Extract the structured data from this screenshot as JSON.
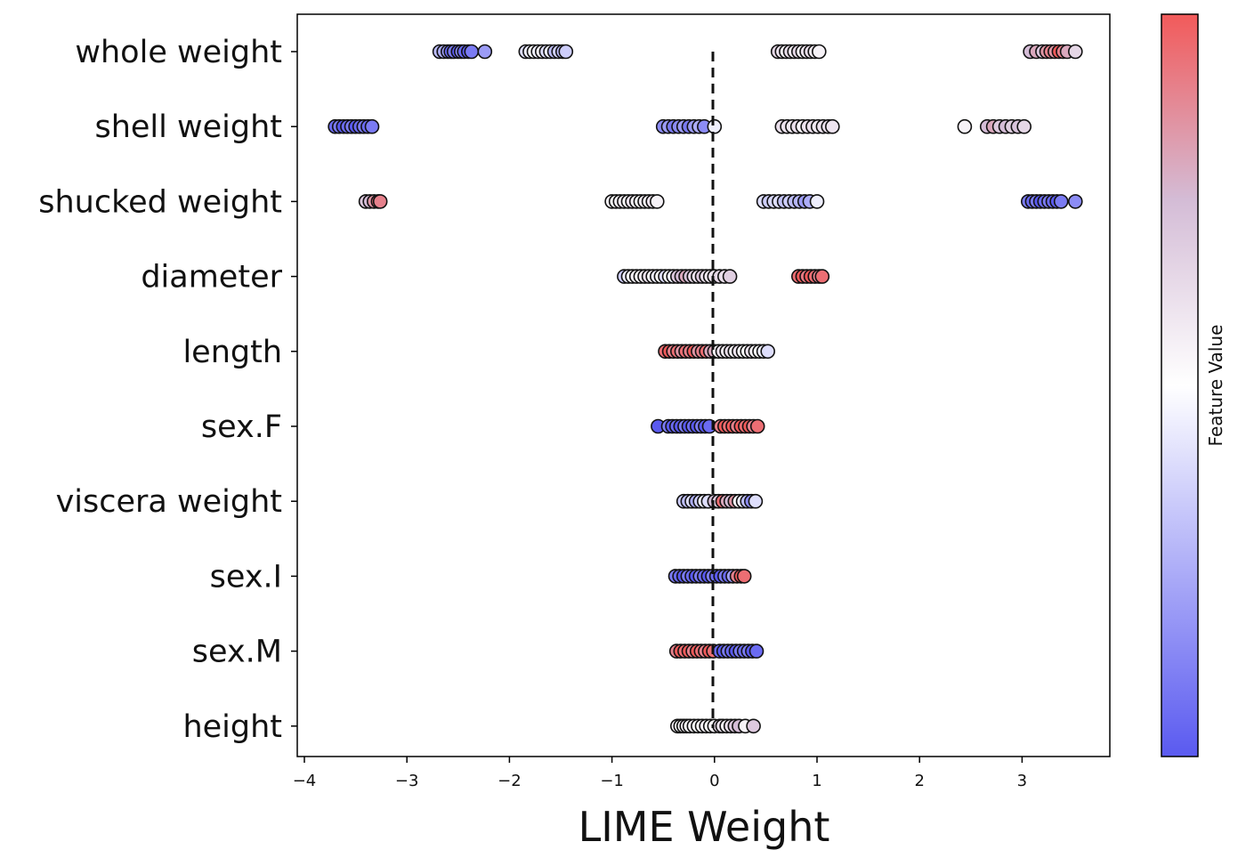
{
  "chart_data": {
    "type": "scatter",
    "xlabel": "LIME Weight",
    "ylabel": "",
    "xlim": [
      -4.05,
      3.87
    ],
    "x_ticks": [
      -4,
      -3,
      -2,
      -1,
      0,
      1,
      2,
      3
    ],
    "x_tick_labels": [
      "−4",
      "−3",
      "−2",
      "−1",
      "0",
      "1",
      "2",
      "3"
    ],
    "grid": false,
    "reference_line": {
      "x": 0,
      "style": "dashed",
      "color": "#111111"
    },
    "colorbar": {
      "label": "Feature Value",
      "colors": {
        "low": "#5a5af0",
        "mid": "#ffffff",
        "high": "#f25a5a"
      }
    },
    "categories": [
      "whole weight",
      "shell weight",
      "shucked weight",
      "diameter",
      "length",
      "sex.F",
      "viscera weight",
      "sex.I",
      "sex.M",
      "height"
    ],
    "series": [
      {
        "category": "whole weight",
        "points": [
          [
            -2.68,
            0.3
          ],
          [
            -2.64,
            0.25
          ],
          [
            -2.6,
            0.2
          ],
          [
            -2.57,
            0.05
          ],
          [
            -2.54,
            0.1
          ],
          [
            -2.5,
            0.0
          ],
          [
            -2.47,
            0.15
          ],
          [
            -2.44,
            0.05
          ],
          [
            -2.4,
            0.0
          ],
          [
            -2.37,
            0.1
          ],
          [
            -2.24,
            0.2
          ],
          [
            -1.84,
            0.4
          ],
          [
            -1.8,
            0.45
          ],
          [
            -1.76,
            0.5
          ],
          [
            -1.72,
            0.45
          ],
          [
            -1.68,
            0.55
          ],
          [
            -1.64,
            0.4
          ],
          [
            -1.6,
            0.45
          ],
          [
            -1.56,
            0.3
          ],
          [
            -1.52,
            0.35
          ],
          [
            -1.48,
            0.3
          ],
          [
            -1.45,
            0.35
          ],
          [
            0.62,
            0.65
          ],
          [
            0.66,
            0.6
          ],
          [
            0.7,
            0.55
          ],
          [
            0.74,
            0.62
          ],
          [
            0.78,
            0.58
          ],
          [
            0.82,
            0.65
          ],
          [
            0.86,
            0.55
          ],
          [
            0.9,
            0.6
          ],
          [
            0.94,
            0.62
          ],
          [
            0.98,
            0.58
          ],
          [
            1.02,
            0.55
          ],
          [
            3.08,
            0.75
          ],
          [
            3.14,
            0.8
          ],
          [
            3.2,
            0.7
          ],
          [
            3.24,
            0.85
          ],
          [
            3.28,
            0.9
          ],
          [
            3.32,
            0.85
          ],
          [
            3.36,
            1.0
          ],
          [
            3.4,
            0.9
          ],
          [
            3.44,
            0.8
          ],
          [
            3.52,
            0.65
          ]
        ]
      },
      {
        "category": "shell weight",
        "points": [
          [
            -3.7,
            0.05
          ],
          [
            -3.66,
            0.1
          ],
          [
            -3.62,
            0.0
          ],
          [
            -3.58,
            0.05
          ],
          [
            -3.54,
            0.1
          ],
          [
            -3.5,
            0.0
          ],
          [
            -3.46,
            0.05
          ],
          [
            -3.42,
            0.1
          ],
          [
            -3.38,
            0.05
          ],
          [
            -3.34,
            0.1
          ],
          [
            -0.5,
            0.15
          ],
          [
            -0.45,
            0.2
          ],
          [
            -0.4,
            0.1
          ],
          [
            -0.35,
            0.15
          ],
          [
            -0.3,
            0.2
          ],
          [
            -0.25,
            0.1
          ],
          [
            -0.2,
            0.2
          ],
          [
            -0.15,
            0.25
          ],
          [
            -0.1,
            0.15
          ],
          [
            0.0,
            0.45
          ],
          [
            0.66,
            0.62
          ],
          [
            0.71,
            0.6
          ],
          [
            0.76,
            0.58
          ],
          [
            0.81,
            0.62
          ],
          [
            0.86,
            0.55
          ],
          [
            0.91,
            0.6
          ],
          [
            0.96,
            0.62
          ],
          [
            1.01,
            0.58
          ],
          [
            1.06,
            0.6
          ],
          [
            1.11,
            0.62
          ],
          [
            1.15,
            0.6
          ],
          [
            2.44,
            0.55
          ],
          [
            2.66,
            0.75
          ],
          [
            2.72,
            0.8
          ],
          [
            2.78,
            0.7
          ],
          [
            2.84,
            0.75
          ],
          [
            2.9,
            0.68
          ],
          [
            2.96,
            0.72
          ],
          [
            3.02,
            0.65
          ]
        ]
      },
      {
        "category": "shucked weight",
        "points": [
          [
            -3.4,
            0.7
          ],
          [
            -3.36,
            0.75
          ],
          [
            -3.32,
            0.85
          ],
          [
            -3.28,
            0.95
          ],
          [
            -3.26,
            0.9
          ],
          [
            -1.0,
            0.55
          ],
          [
            -0.96,
            0.5
          ],
          [
            -0.92,
            0.55
          ],
          [
            -0.88,
            0.58
          ],
          [
            -0.84,
            0.52
          ],
          [
            -0.8,
            0.6
          ],
          [
            -0.76,
            0.55
          ],
          [
            -0.72,
            0.5
          ],
          [
            -0.68,
            0.58
          ],
          [
            -0.64,
            0.55
          ],
          [
            -0.6,
            0.6
          ],
          [
            -0.56,
            0.55
          ],
          [
            0.48,
            0.4
          ],
          [
            0.53,
            0.35
          ],
          [
            0.58,
            0.38
          ],
          [
            0.63,
            0.4
          ],
          [
            0.68,
            0.32
          ],
          [
            0.73,
            0.35
          ],
          [
            0.78,
            0.3
          ],
          [
            0.83,
            0.28
          ],
          [
            0.88,
            0.2
          ],
          [
            0.93,
            0.25
          ],
          [
            1.0,
            0.45
          ],
          [
            3.06,
            0.1
          ],
          [
            3.1,
            0.05
          ],
          [
            3.14,
            0.1
          ],
          [
            3.18,
            0.0
          ],
          [
            3.22,
            0.05
          ],
          [
            3.26,
            0.1
          ],
          [
            3.3,
            0.05
          ],
          [
            3.34,
            0.0
          ],
          [
            3.38,
            0.1
          ],
          [
            3.52,
            0.15
          ]
        ]
      },
      {
        "category": "diameter",
        "points": [
          [
            -0.88,
            0.35
          ],
          [
            -0.84,
            0.45
          ],
          [
            -0.8,
            0.5
          ],
          [
            -0.76,
            0.55
          ],
          [
            -0.72,
            0.52
          ],
          [
            -0.68,
            0.58
          ],
          [
            -0.64,
            0.6
          ],
          [
            -0.6,
            0.55
          ],
          [
            -0.56,
            0.45
          ],
          [
            -0.52,
            0.5
          ],
          [
            -0.48,
            0.4
          ],
          [
            -0.44,
            0.5
          ],
          [
            -0.4,
            0.45
          ],
          [
            -0.36,
            0.7
          ],
          [
            -0.32,
            0.75
          ],
          [
            -0.28,
            0.8
          ],
          [
            -0.24,
            0.72
          ],
          [
            -0.2,
            0.65
          ],
          [
            -0.16,
            0.6
          ],
          [
            -0.12,
            0.7
          ],
          [
            -0.08,
            0.62
          ],
          [
            -0.04,
            0.58
          ],
          [
            0.0,
            0.6
          ],
          [
            0.05,
            0.65
          ],
          [
            0.1,
            0.62
          ],
          [
            0.15,
            0.68
          ],
          [
            0.82,
            0.95
          ],
          [
            0.86,
            1.0
          ],
          [
            0.9,
            0.92
          ],
          [
            0.94,
            1.0
          ],
          [
            0.98,
            0.95
          ],
          [
            1.02,
            0.9
          ],
          [
            1.05,
            0.95
          ]
        ]
      },
      {
        "category": "length",
        "points": [
          [
            -0.48,
            0.95
          ],
          [
            -0.44,
            1.0
          ],
          [
            -0.4,
            0.9
          ],
          [
            -0.36,
            0.95
          ],
          [
            -0.32,
            0.85
          ],
          [
            -0.28,
            0.95
          ],
          [
            -0.24,
            0.9
          ],
          [
            -0.2,
            1.0
          ],
          [
            -0.16,
            0.85
          ],
          [
            -0.12,
            0.9
          ],
          [
            -0.08,
            0.95
          ],
          [
            -0.04,
            0.8
          ],
          [
            0.0,
            0.8
          ],
          [
            0.04,
            0.55
          ],
          [
            0.08,
            0.6
          ],
          [
            0.12,
            0.58
          ],
          [
            0.16,
            0.62
          ],
          [
            0.2,
            0.55
          ],
          [
            0.24,
            0.6
          ],
          [
            0.28,
            0.52
          ],
          [
            0.32,
            0.5
          ],
          [
            0.36,
            0.6
          ],
          [
            0.4,
            0.55
          ],
          [
            0.44,
            0.5
          ],
          [
            0.48,
            0.45
          ],
          [
            0.52,
            0.4
          ]
        ]
      },
      {
        "category": "sex.F",
        "points": [
          [
            -0.55,
            0.0
          ],
          [
            -0.45,
            0.1
          ],
          [
            -0.41,
            0.0
          ],
          [
            -0.37,
            0.05
          ],
          [
            -0.33,
            0.0
          ],
          [
            -0.29,
            0.1
          ],
          [
            -0.25,
            0.0
          ],
          [
            -0.21,
            0.05
          ],
          [
            -0.17,
            0.0
          ],
          [
            -0.13,
            0.1
          ],
          [
            -0.09,
            0.0
          ],
          [
            -0.05,
            0.05
          ],
          [
            0.06,
            0.9
          ],
          [
            0.1,
            1.0
          ],
          [
            0.14,
            0.95
          ],
          [
            0.18,
            1.0
          ],
          [
            0.22,
            0.9
          ],
          [
            0.26,
            1.0
          ],
          [
            0.3,
            0.95
          ],
          [
            0.34,
            1.0
          ],
          [
            0.38,
            0.9
          ],
          [
            0.42,
            0.95
          ]
        ]
      },
      {
        "category": "viscera weight",
        "points": [
          [
            -0.3,
            0.35
          ],
          [
            -0.26,
            0.3
          ],
          [
            -0.22,
            0.4
          ],
          [
            -0.18,
            0.25
          ],
          [
            -0.14,
            0.35
          ],
          [
            -0.1,
            0.45
          ],
          [
            -0.06,
            0.4
          ],
          [
            0.0,
            0.75
          ],
          [
            0.04,
            0.7
          ],
          [
            0.08,
            0.95
          ],
          [
            0.12,
            0.8
          ],
          [
            0.16,
            0.75
          ],
          [
            0.2,
            0.85
          ],
          [
            0.24,
            0.55
          ],
          [
            0.28,
            0.45
          ],
          [
            0.32,
            0.3
          ],
          [
            0.36,
            0.15
          ],
          [
            0.4,
            0.4
          ]
        ]
      },
      {
        "category": "sex.I",
        "points": [
          [
            -0.38,
            0.1
          ],
          [
            -0.34,
            0.05
          ],
          [
            -0.3,
            0.0
          ],
          [
            -0.26,
            0.1
          ],
          [
            -0.22,
            0.05
          ],
          [
            -0.18,
            0.0
          ],
          [
            -0.14,
            0.1
          ],
          [
            -0.1,
            0.05
          ],
          [
            -0.06,
            0.0
          ],
          [
            -0.02,
            0.1
          ],
          [
            0.02,
            0.05
          ],
          [
            0.06,
            0.0
          ],
          [
            0.1,
            0.1
          ],
          [
            0.14,
            0.05
          ],
          [
            0.18,
            0.2
          ],
          [
            0.22,
            0.9
          ],
          [
            0.26,
            1.0
          ],
          [
            0.29,
            0.95
          ]
        ]
      },
      {
        "category": "sex.M",
        "points": [
          [
            -0.37,
            0.9
          ],
          [
            -0.33,
            1.0
          ],
          [
            -0.29,
            0.95
          ],
          [
            -0.25,
            1.0
          ],
          [
            -0.21,
            0.9
          ],
          [
            -0.17,
            1.0
          ],
          [
            -0.13,
            0.95
          ],
          [
            -0.09,
            0.9
          ],
          [
            -0.05,
            1.0
          ],
          [
            -0.01,
            0.95
          ],
          [
            0.05,
            0.05
          ],
          [
            0.09,
            0.0
          ],
          [
            0.13,
            0.1
          ],
          [
            0.17,
            0.05
          ],
          [
            0.21,
            0.0
          ],
          [
            0.25,
            0.1
          ],
          [
            0.29,
            0.05
          ],
          [
            0.33,
            0.1
          ],
          [
            0.37,
            0.0
          ],
          [
            0.41,
            0.05
          ]
        ]
      },
      {
        "category": "height",
        "points": [
          [
            -0.36,
            0.55
          ],
          [
            -0.33,
            0.5
          ],
          [
            -0.3,
            0.52
          ],
          [
            -0.27,
            0.55
          ],
          [
            -0.24,
            0.5
          ],
          [
            -0.2,
            0.55
          ],
          [
            -0.16,
            0.5
          ],
          [
            -0.12,
            0.52
          ],
          [
            -0.08,
            0.55
          ],
          [
            -0.04,
            0.5
          ],
          [
            0.0,
            0.55
          ],
          [
            0.05,
            0.65
          ],
          [
            0.08,
            0.6
          ],
          [
            0.12,
            0.55
          ],
          [
            0.16,
            0.62
          ],
          [
            0.2,
            0.7
          ],
          [
            0.24,
            0.75
          ],
          [
            0.3,
            0.55
          ],
          [
            0.38,
            0.7
          ]
        ]
      }
    ]
  }
}
